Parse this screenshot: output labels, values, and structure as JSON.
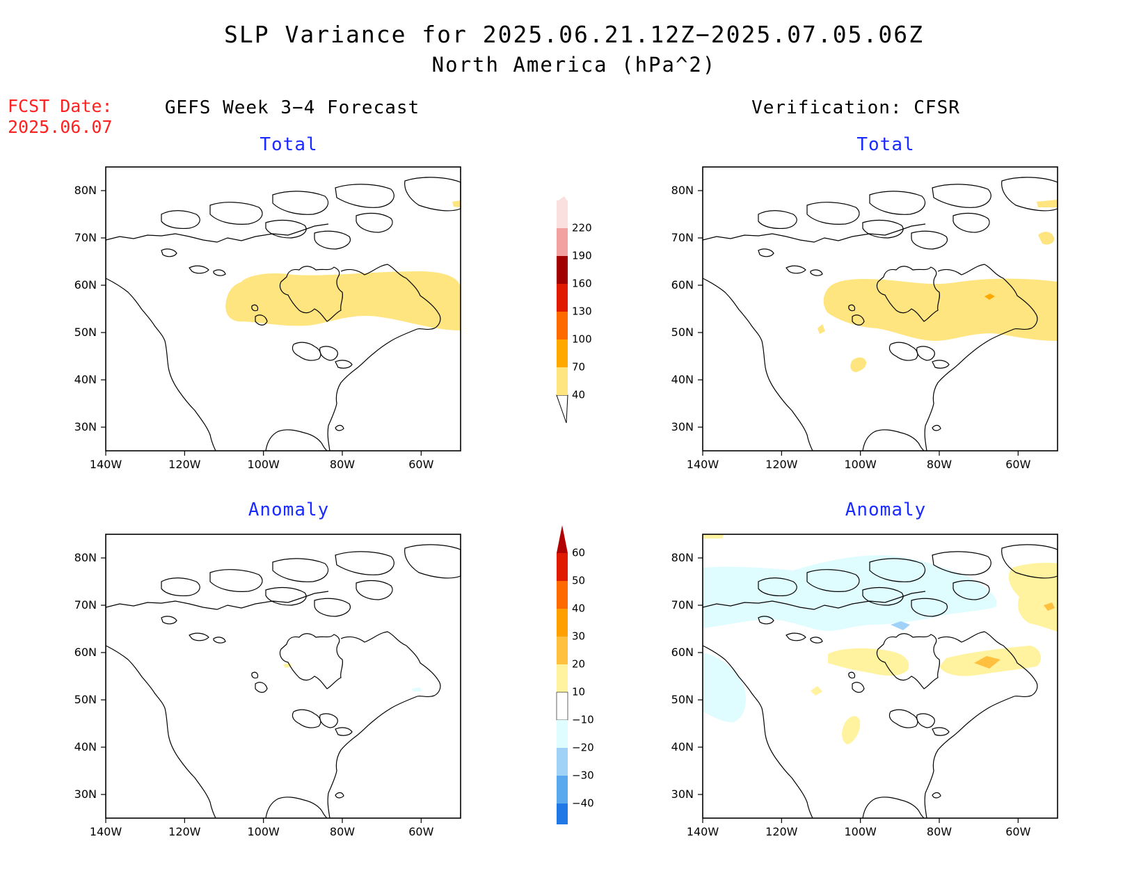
{
  "title": "SLP Variance for 2025.06.21.12Z−2025.07.05.06Z",
  "subtitle": "North America (hPa^2)",
  "fcst_date": {
    "label": "FCST Date:",
    "value": "2025.06.07"
  },
  "columns": {
    "left": "GEFS Week 3−4 Forecast",
    "right": "Verification: CFSR"
  },
  "panels": {
    "gefs_total": {
      "title": "Total"
    },
    "cfsr_total": {
      "title": "Total"
    },
    "gefs_anomaly": {
      "title": "Anomaly"
    },
    "cfsr_anomaly": {
      "title": "Anomaly"
    }
  },
  "axes": {
    "lat_labels": [
      "80N",
      "70N",
      "60N",
      "50N",
      "40N",
      "30N"
    ],
    "lat_values": [
      80,
      70,
      60,
      50,
      40,
      30
    ],
    "lon_labels": [
      "140W",
      "120W",
      "100W",
      "80W",
      "60W"
    ],
    "lon_values": [
      -140,
      -120,
      -100,
      -80,
      -60
    ],
    "lon_range": [
      -140,
      -50
    ],
    "lat_range": [
      25,
      85
    ]
  },
  "colorbar_total": {
    "levels": [
      "40",
      "70",
      "100",
      "130",
      "160",
      "190",
      "220"
    ],
    "colors": [
      "#ffe57f",
      "#ffa800",
      "#ff6a00",
      "#e01a00",
      "#a00000",
      "#f2a0a0",
      "#fbe0e0"
    ]
  },
  "colorbar_anomaly": {
    "levels": [
      "60",
      "50",
      "40",
      "30",
      "20",
      "10",
      "−10",
      "−20",
      "−30",
      "−40"
    ],
    "colors_top_down": [
      "#b00000",
      "#e01a00",
      "#ff6a00",
      "#ffa000",
      "#ffc040",
      "#fff3a0",
      "#ffffff",
      "#dffcff",
      "#a0d2f8",
      "#5aa8ee",
      "#1f78e6",
      "#0a55c8"
    ]
  },
  "colors": {
    "title_blue": "#1a2bff",
    "fcst_red": "#ff2020"
  },
  "chart_data": {
    "type": "map",
    "fields": {
      "gefs_total": [
        {
          "level": "40-70",
          "region": "Central/Eastern Canada 50N-62N, 110W-50W"
        }
      ],
      "cfsr_total": [
        {
          "level": "40-70",
          "region": "Central/Eastern Canada 48N-62N, 110W-50W"
        },
        {
          "level": "70-100",
          "region": "Small spot near 57N 67W"
        }
      ],
      "gefs_anomaly": [],
      "cfsr_anomaly": [
        {
          "level": "-10 to -20",
          "region": "Arctic / Alaska / Pacific coast"
        },
        {
          "level": "10 to 20",
          "region": "Central Canada 53N-60N"
        },
        {
          "level": "20 to 30",
          "region": "Labrador near 57N 67W"
        }
      ]
    }
  }
}
